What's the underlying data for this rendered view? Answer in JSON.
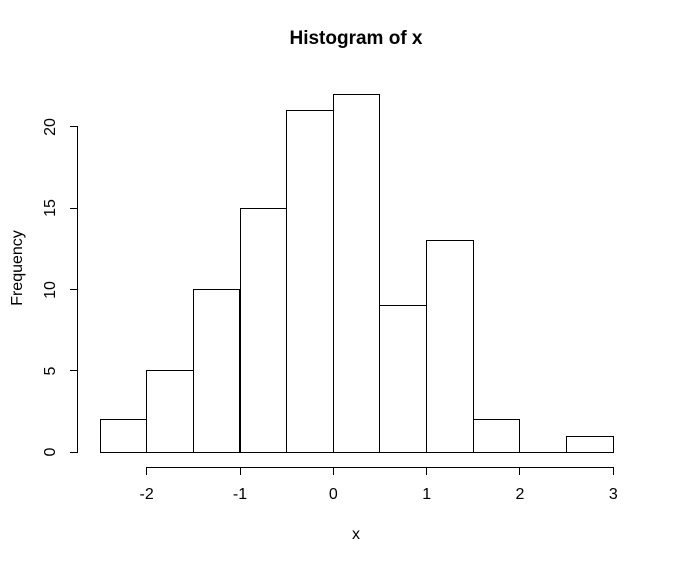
{
  "chart_data": {
    "type": "bar",
    "subtype": "histogram",
    "title": "Histogram of x",
    "xlabel": "x",
    "ylabel": "Frequency",
    "bin_edges": [
      -2.5,
      -2.0,
      -1.5,
      -1.0,
      -0.5,
      0.0,
      0.5,
      1.0,
      1.5,
      2.0,
      2.5,
      3.0
    ],
    "counts": [
      2,
      5,
      10,
      15,
      21,
      22,
      9,
      13,
      2,
      0,
      1
    ],
    "x_ticks": [
      "-2",
      "-1",
      "0",
      "1",
      "2",
      "3"
    ],
    "x_tick_values": [
      -2,
      -1,
      0,
      1,
      2,
      3
    ],
    "y_ticks": [
      "0",
      "5",
      "10",
      "15",
      "20"
    ],
    "y_tick_values": [
      0,
      5,
      10,
      15,
      20
    ],
    "xlim": [
      -2.72,
      3.22
    ],
    "ylim": [
      -0.88,
      22.88
    ],
    "grid": "off",
    "legend": "none",
    "bar_fill": "#ffffff",
    "line_color": "#000000",
    "background": "#ffffff"
  }
}
